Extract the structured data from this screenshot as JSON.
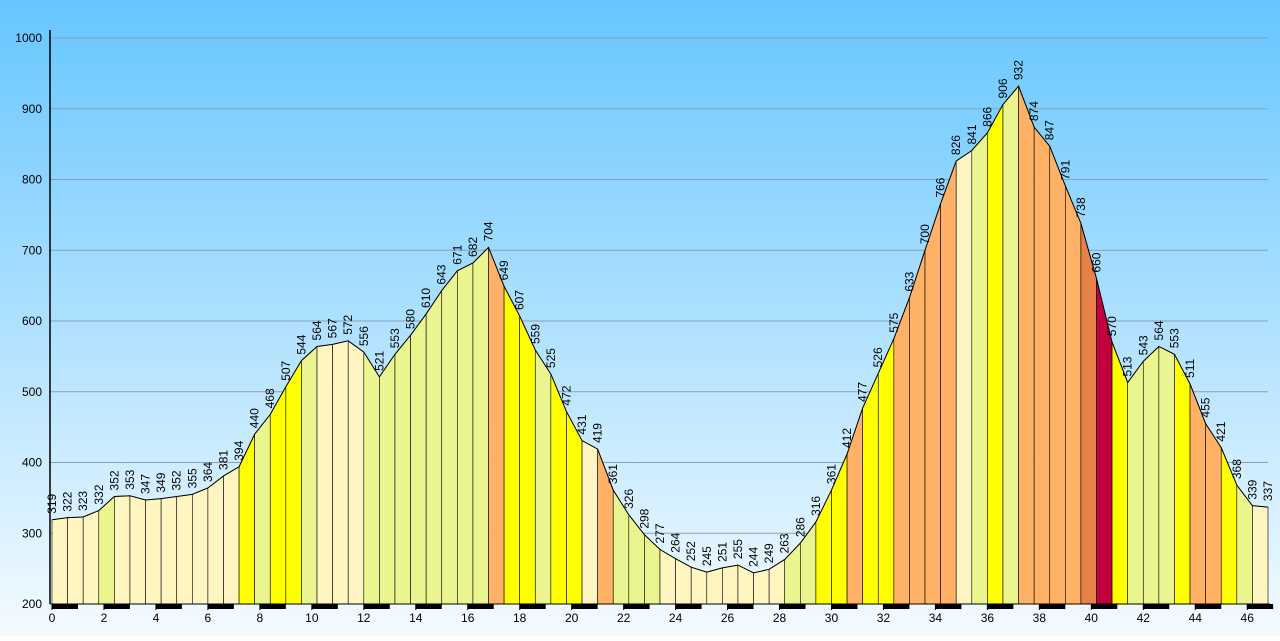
{
  "chart_data": {
    "type": "area",
    "x": [
      0,
      0.6,
      1.2,
      1.8,
      2.4,
      3.0,
      3.6,
      4.2,
      4.8,
      5.4,
      6.0,
      6.6,
      7.2,
      7.8,
      8.4,
      9.0,
      9.6,
      10.2,
      10.8,
      11.4,
      12.0,
      12.6,
      13.2,
      13.8,
      14.4,
      15.0,
      15.6,
      16.2,
      16.8,
      17.4,
      18.0,
      18.6,
      19.2,
      19.8,
      20.4,
      21.0,
      21.6,
      22.2,
      22.8,
      23.4,
      24.0,
      24.6,
      25.2,
      25.8,
      26.4,
      27.0,
      27.6,
      28.2,
      28.8,
      29.4,
      30.0,
      30.6,
      31.2,
      31.8,
      32.4,
      33.0,
      33.6,
      34.2,
      34.8,
      35.4,
      36.0,
      36.6,
      37.2,
      37.8,
      38.4,
      39.0,
      39.6,
      40.2,
      40.8,
      41.4,
      42.0,
      42.6,
      43.2,
      43.8,
      44.4,
      45.0,
      45.6,
      46.2,
      46.8
    ],
    "values": [
      319,
      322,
      323,
      332,
      352,
      353,
      347,
      349,
      352,
      355,
      364,
      381,
      394,
      440,
      468,
      507,
      544,
      564,
      567,
      572,
      556,
      521,
      553,
      580,
      610,
      643,
      671,
      682,
      704,
      649,
      607,
      559,
      525,
      472,
      431,
      419,
      361,
      326,
      298,
      277,
      264,
      252,
      245,
      251,
      255,
      244,
      249,
      263,
      286,
      316,
      361,
      412,
      477,
      526,
      575,
      633,
      700,
      766,
      826,
      841,
      866,
      906,
      932,
      874,
      847,
      791,
      738,
      660,
      570,
      513,
      543,
      564,
      553,
      511,
      455,
      421,
      368,
      339,
      337
    ],
    "segment_colors": [
      "#fff5c0",
      "#fff5c0",
      "#fff5c0",
      "#eaf590",
      "#fff5c0",
      "#fff5c0",
      "#fff5c0",
      "#fff5c0",
      "#fff5c0",
      "#fff5c0",
      "#fff5c0",
      "#fff5c0",
      "#ffff00",
      "#eaf590",
      "#ffff00",
      "#ffff00",
      "#eaf590",
      "#fff5c0",
      "#fff5c0",
      "#fff5c0",
      "#eaf590",
      "#eaf590",
      "#eaf590",
      "#eaf590",
      "#eaf590",
      "#eaf590",
      "#eaf590",
      "#eaf590",
      "#ffb266",
      "#ffff00",
      "#ffff00",
      "#eaf590",
      "#ffff00",
      "#ffff00",
      "#fff5c0",
      "#ffb266",
      "#eaf590",
      "#eaf590",
      "#eaf590",
      "#fff5c0",
      "#fff5c0",
      "#fff5c0",
      "#fff5c0",
      "#fff5c0",
      "#fff5c0",
      "#fff5c0",
      "#fff5c0",
      "#eaf590",
      "#eaf590",
      "#ffff00",
      "#ffff00",
      "#ffb266",
      "#ffff00",
      "#ffff00",
      "#ffb266",
      "#ffb266",
      "#ffb266",
      "#ffb266",
      "#fff5c0",
      "#eaf590",
      "#ffff00",
      "#eaf590",
      "#ffb266",
      "#ffb266",
      "#ffb266",
      "#ffb266",
      "#e8804a",
      "#c0003c",
      "#ffff00",
      "#eaf590",
      "#eaf590",
      "#eaf590",
      "#ffff00",
      "#ffb266",
      "#ffb266",
      "#ffff00",
      "#eaf590",
      "#fff5c0"
    ],
    "xlim": [
      0,
      46.8
    ],
    "ylim": [
      200,
      1000
    ],
    "xticks": [
      0,
      2,
      4,
      6,
      8,
      10,
      12,
      14,
      16,
      18,
      20,
      22,
      24,
      26,
      28,
      30,
      32,
      34,
      36,
      38,
      40,
      42,
      44,
      46
    ],
    "yticks": [
      200,
      300,
      400,
      500,
      600,
      700,
      800,
      900,
      1000
    ],
    "grid": true
  }
}
